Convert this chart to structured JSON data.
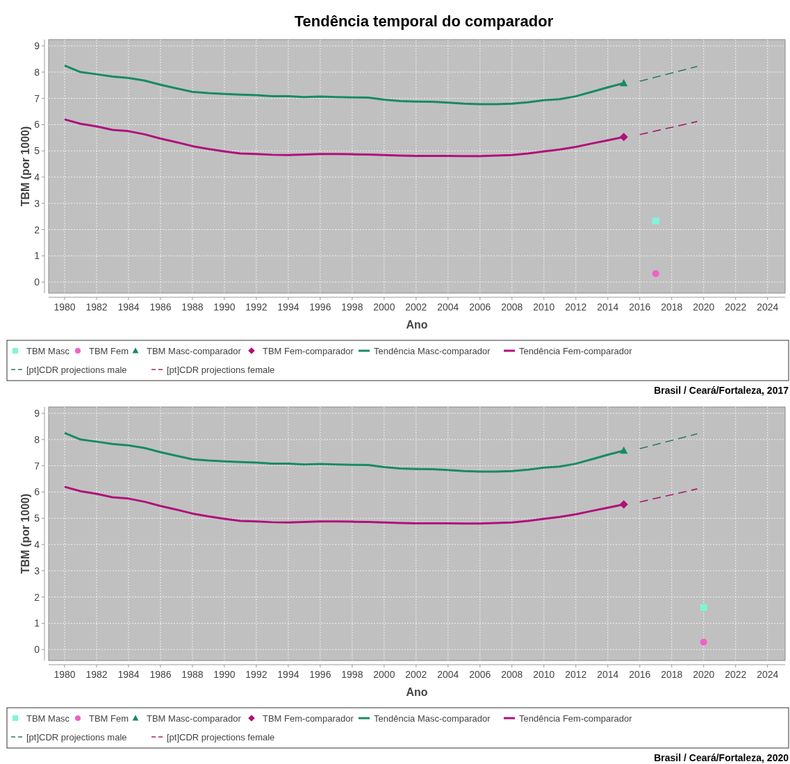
{
  "chart_data": [
    {
      "type": "line",
      "title": "Tendência temporal do comparador",
      "xlabel": "Ano",
      "ylabel": "TBM (por 1000)",
      "xlim": [
        1979,
        2025.1
      ],
      "ylim": [
        -0.42,
        9.24
      ],
      "xticks": [
        1980,
        1982,
        1984,
        1986,
        1988,
        1990,
        1992,
        1994,
        1996,
        1998,
        2000,
        2002,
        2004,
        2006,
        2008,
        2010,
        2012,
        2014,
        2016,
        2018,
        2020,
        2022,
        2024
      ],
      "yticks": [
        0,
        1,
        2,
        3,
        4,
        5,
        6,
        7,
        8,
        9
      ],
      "grid": true,
      "legend": "bottom",
      "annotations": [
        "Brasil / Ceará/Fortaleza, 2017"
      ],
      "series": [
        {
          "type": "scatter",
          "name": "TBM Masc",
          "color": "#7ff5d8",
          "marker": "square",
          "x": [
            2017
          ],
          "values": [
            2.33
          ]
        },
        {
          "type": "scatter",
          "name": "TBM Fem",
          "color": "#f060c8",
          "marker": "circle",
          "x": [
            2017
          ],
          "values": [
            0.32
          ]
        },
        {
          "type": "scatter",
          "name": "TBM Masc-comparador",
          "color": "#178a66",
          "marker": "triangle",
          "x": [
            2015
          ],
          "values": [
            7.58
          ]
        },
        {
          "type": "scatter",
          "name": "TBM Fem-comparador",
          "color": "#b0107a",
          "marker": "diamond",
          "x": [
            2015
          ],
          "values": [
            5.53
          ]
        },
        {
          "type": "line",
          "name": "Tendência Masc-comparador",
          "color": "#178a66",
          "line_style": "solid",
          "x": [
            1980,
            1981,
            1982,
            1983,
            1984,
            1985,
            1986,
            1987,
            1988,
            1989,
            1990,
            1991,
            1992,
            1993,
            1994,
            1995,
            1996,
            1997,
            1998,
            1999,
            2000,
            2001,
            2002,
            2003,
            2004,
            2005,
            2006,
            2007,
            2008,
            2009,
            2010,
            2011,
            2012,
            2013,
            2014,
            2015
          ],
          "values": [
            8.25,
            8.0,
            7.92,
            7.83,
            7.78,
            7.68,
            7.52,
            7.38,
            7.25,
            7.2,
            7.17,
            7.14,
            7.12,
            7.08,
            7.08,
            7.05,
            7.07,
            7.05,
            7.04,
            7.03,
            6.95,
            6.9,
            6.88,
            6.87,
            6.84,
            6.8,
            6.78,
            6.78,
            6.8,
            6.85,
            6.93,
            6.97,
            7.08,
            7.25,
            7.42,
            7.58
          ]
        },
        {
          "type": "line",
          "name": "Tendência Fem-comparador",
          "color": "#b0107a",
          "line_style": "solid",
          "x": [
            1980,
            1981,
            1982,
            1983,
            1984,
            1985,
            1986,
            1987,
            1988,
            1989,
            1990,
            1991,
            1992,
            1993,
            1994,
            1995,
            1996,
            1997,
            1998,
            1999,
            2000,
            2001,
            2002,
            2003,
            2004,
            2005,
            2006,
            2007,
            2008,
            2009,
            2010,
            2011,
            2012,
            2013,
            2014,
            2015
          ],
          "values": [
            6.2,
            6.03,
            5.93,
            5.8,
            5.75,
            5.63,
            5.47,
            5.33,
            5.18,
            5.07,
            4.98,
            4.9,
            4.88,
            4.85,
            4.84,
            4.86,
            4.88,
            4.88,
            4.87,
            4.86,
            4.84,
            4.82,
            4.81,
            4.81,
            4.81,
            4.8,
            4.8,
            4.82,
            4.84,
            4.9,
            4.98,
            5.05,
            5.15,
            5.28,
            5.4,
            5.53
          ]
        },
        {
          "type": "line",
          "name": "[pt]CDR projections male",
          "color": "#2a7a5e",
          "line_style": "dashed",
          "x": [
            2016,
            2019.6
          ],
          "values": [
            7.65,
            8.22
          ]
        },
        {
          "type": "line",
          "name": "[pt]CDR projections female",
          "color": "#a0206e",
          "line_style": "dashed",
          "x": [
            2016,
            2019.6
          ],
          "values": [
            5.62,
            6.12
          ]
        }
      ]
    },
    {
      "type": "line",
      "xlabel": "Ano",
      "ylabel": "TBM (por 1000)",
      "xlim": [
        1979,
        2025.1
      ],
      "ylim": [
        -0.42,
        9.24
      ],
      "xticks": [
        1980,
        1982,
        1984,
        1986,
        1988,
        1990,
        1992,
        1994,
        1996,
        1998,
        2000,
        2002,
        2004,
        2006,
        2008,
        2010,
        2012,
        2014,
        2016,
        2018,
        2020,
        2022,
        2024
      ],
      "yticks": [
        0,
        1,
        2,
        3,
        4,
        5,
        6,
        7,
        8,
        9
      ],
      "grid": true,
      "legend": "bottom",
      "annotations": [
        "Brasil / Ceará/Fortaleza, 2020"
      ],
      "series": [
        {
          "type": "scatter",
          "name": "TBM Masc",
          "color": "#7ff5d8",
          "marker": "square",
          "x": [
            2020
          ],
          "values": [
            1.6
          ]
        },
        {
          "type": "scatter",
          "name": "TBM Fem",
          "color": "#f060c8",
          "marker": "circle",
          "x": [
            2020
          ],
          "values": [
            0.28
          ]
        },
        {
          "type": "scatter",
          "name": "TBM Masc-comparador",
          "color": "#178a66",
          "marker": "triangle",
          "x": [
            2015
          ],
          "values": [
            7.58
          ]
        },
        {
          "type": "scatter",
          "name": "TBM Fem-comparador",
          "color": "#b0107a",
          "marker": "diamond",
          "x": [
            2015
          ],
          "values": [
            5.53
          ]
        },
        {
          "type": "line",
          "name": "Tendência Masc-comparador",
          "color": "#178a66",
          "line_style": "solid",
          "x": [
            1980,
            1981,
            1982,
            1983,
            1984,
            1985,
            1986,
            1987,
            1988,
            1989,
            1990,
            1991,
            1992,
            1993,
            1994,
            1995,
            1996,
            1997,
            1998,
            1999,
            2000,
            2001,
            2002,
            2003,
            2004,
            2005,
            2006,
            2007,
            2008,
            2009,
            2010,
            2011,
            2012,
            2013,
            2014,
            2015
          ],
          "values": [
            8.25,
            8.0,
            7.92,
            7.83,
            7.78,
            7.68,
            7.52,
            7.38,
            7.25,
            7.2,
            7.17,
            7.14,
            7.12,
            7.08,
            7.08,
            7.05,
            7.07,
            7.05,
            7.04,
            7.03,
            6.95,
            6.9,
            6.88,
            6.87,
            6.84,
            6.8,
            6.78,
            6.78,
            6.8,
            6.85,
            6.93,
            6.97,
            7.08,
            7.25,
            7.42,
            7.58
          ]
        },
        {
          "type": "line",
          "name": "Tendência Fem-comparador",
          "color": "#b0107a",
          "line_style": "solid",
          "x": [
            1980,
            1981,
            1982,
            1983,
            1984,
            1985,
            1986,
            1987,
            1988,
            1989,
            1990,
            1991,
            1992,
            1993,
            1994,
            1995,
            1996,
            1997,
            1998,
            1999,
            2000,
            2001,
            2002,
            2003,
            2004,
            2005,
            2006,
            2007,
            2008,
            2009,
            2010,
            2011,
            2012,
            2013,
            2014,
            2015
          ],
          "values": [
            6.2,
            6.03,
            5.93,
            5.8,
            5.75,
            5.63,
            5.47,
            5.33,
            5.18,
            5.07,
            4.98,
            4.9,
            4.88,
            4.85,
            4.84,
            4.86,
            4.88,
            4.88,
            4.87,
            4.86,
            4.84,
            4.82,
            4.81,
            4.81,
            4.81,
            4.8,
            4.8,
            4.82,
            4.84,
            4.9,
            4.98,
            5.05,
            5.15,
            5.28,
            5.4,
            5.53
          ]
        },
        {
          "type": "line",
          "name": "[pt]CDR projections male",
          "color": "#2a7a5e",
          "line_style": "dashed",
          "x": [
            2016,
            2019.6
          ],
          "values": [
            7.65,
            8.22
          ]
        },
        {
          "type": "line",
          "name": "[pt]CDR projections female",
          "color": "#a0206e",
          "line_style": "dashed",
          "x": [
            2016,
            2019.6
          ],
          "values": [
            5.62,
            6.12
          ]
        }
      ]
    }
  ]
}
